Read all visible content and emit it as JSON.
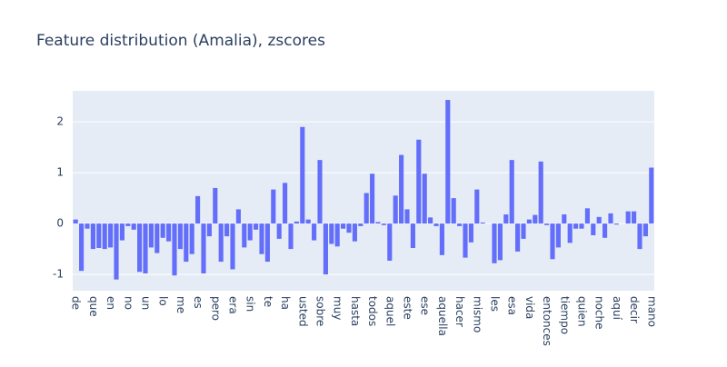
{
  "chart_data": {
    "type": "bar",
    "title": "Feature distribution (Amalia), zscores",
    "categories": [
      "de",
      null,
      null,
      "que",
      null,
      null,
      "en",
      null,
      null,
      "no",
      null,
      null,
      "un",
      null,
      null,
      "lo",
      null,
      null,
      "me",
      null,
      null,
      "es",
      null,
      null,
      "pero",
      null,
      null,
      "era",
      null,
      null,
      "sin",
      null,
      null,
      "te",
      null,
      null,
      "ha",
      null,
      null,
      "usted",
      null,
      null,
      "sobre",
      null,
      null,
      "muy",
      null,
      null,
      "hasta",
      null,
      null,
      "todos",
      null,
      null,
      "aquel",
      null,
      null,
      "este",
      null,
      null,
      "ese",
      null,
      null,
      "aquella",
      null,
      null,
      "hacer",
      null,
      null,
      "mismo",
      null,
      null,
      "les",
      null,
      null,
      "esa",
      null,
      null,
      "vida",
      null,
      null,
      "entonces",
      null,
      null,
      "tiempo",
      null,
      null,
      "quien",
      null,
      null,
      "noche",
      null,
      null,
      "aquí",
      null,
      null,
      "decir",
      null,
      null,
      "mano"
    ],
    "values": [
      0.08,
      -0.93,
      -0.1,
      -0.5,
      -0.48,
      -0.5,
      -0.47,
      -1.1,
      -0.33,
      -0.05,
      -0.12,
      -0.95,
      -0.98,
      -0.47,
      -0.58,
      -0.28,
      -0.35,
      -1.02,
      -0.5,
      -0.75,
      -0.6,
      0.54,
      -0.98,
      -0.25,
      0.7,
      -0.75,
      -0.25,
      -0.9,
      0.28,
      -0.47,
      -0.33,
      -0.12,
      -0.6,
      -0.75,
      0.67,
      -0.3,
      0.8,
      -0.5,
      0.04,
      1.9,
      0.08,
      -0.33,
      1.25,
      -1.0,
      -0.4,
      -0.45,
      -0.1,
      -0.18,
      -0.35,
      -0.05,
      0.6,
      0.98,
      0.03,
      -0.03,
      -0.73,
      0.55,
      1.35,
      0.28,
      -0.48,
      1.65,
      0.98,
      0.12,
      -0.05,
      -0.62,
      2.43,
      0.5,
      -0.05,
      -0.67,
      -0.37,
      0.67,
      0.02,
      0,
      -0.78,
      -0.72,
      0.18,
      1.25,
      -0.55,
      -0.3,
      0.08,
      0.17,
      1.22,
      -0.03,
      -0.7,
      -0.47,
      0.18,
      -0.38,
      -0.1,
      -0.1,
      0.3,
      -0.23,
      0.13,
      -0.28,
      0.2,
      -0.02,
      0,
      0.24,
      0.24,
      -0.5,
      -0.25,
      1.1
    ],
    "color": "#636efa",
    "ylim": [
      -1.32,
      2.61
    ],
    "yticks": [
      -1,
      0,
      1,
      2
    ],
    "grid": true
  }
}
